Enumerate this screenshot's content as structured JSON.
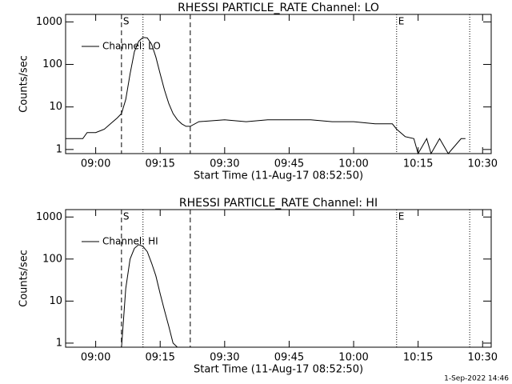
{
  "chart_data": [
    {
      "type": "line",
      "title": "RHESSI PARTICLE_RATE Channel: LO",
      "x_label": "Start Time (11-Aug-17 08:52:50)",
      "y_label": "Counts/sec",
      "log_y": true,
      "xlim": [
        "08:53",
        "10:32"
      ],
      "ylim": [
        0.8,
        1500
      ],
      "yticks": [
        1,
        10,
        100,
        1000
      ],
      "xticks": [
        "09:00",
        "09:15",
        "09:30",
        "09:45",
        "10:00",
        "10:15",
        "10:30"
      ],
      "x": [
        "08:53",
        "08:57",
        "08:58",
        "09:00",
        "09:02",
        "09:04",
        "09:05",
        "09:06",
        "09:07",
        "09:08",
        "09:09",
        "09:10",
        "09:11",
        "09:12",
        "09:13",
        "09:14",
        "09:15",
        "09:16",
        "09:17",
        "09:18",
        "09:19",
        "09:20",
        "09:21",
        "09:22",
        "09:24",
        "09:30",
        "09:35",
        "09:40",
        "09:45",
        "09:50",
        "09:55",
        "10:00",
        "10:05",
        "10:09",
        "10:10",
        "10:12",
        "10:14",
        "10:15",
        "10:17",
        "10:18",
        "10:20",
        "10:22",
        "10:25",
        "10:26"
      ],
      "series": [
        {
          "name": "Channel: LO",
          "color": "#000000",
          "values": [
            1.8,
            1.8,
            2.5,
            2.5,
            3,
            4.5,
            5.5,
            7,
            15,
            60,
            200,
            350,
            430,
            420,
            300,
            150,
            60,
            25,
            12,
            7,
            5,
            4,
            3.5,
            3.5,
            4.5,
            5,
            4.5,
            5,
            5,
            5,
            4.5,
            4.5,
            4,
            4,
            3,
            2,
            1.8,
            0.8,
            1.8,
            0.8,
            1.8,
            0.8,
            1.8,
            1.8
          ]
        }
      ],
      "vlines": [
        {
          "x": "09:06",
          "style": "dashed",
          "label": "S"
        },
        {
          "x": "09:11",
          "style": "dotted"
        },
        {
          "x": "09:22",
          "style": "dashed"
        },
        {
          "x": "10:10",
          "style": "dotted",
          "label": "E"
        },
        {
          "x": "10:27",
          "style": "dotted"
        }
      ]
    },
    {
      "type": "line",
      "title": "RHESSI PARTICLE_RATE Channel: HI",
      "x_label": "Start Time (11-Aug-17 08:52:50)",
      "y_label": "Counts/sec",
      "log_y": true,
      "xlim": [
        "08:53",
        "10:32"
      ],
      "ylim": [
        0.8,
        1500
      ],
      "yticks": [
        1,
        10,
        100,
        1000
      ],
      "xticks": [
        "09:00",
        "09:15",
        "09:30",
        "09:45",
        "10:00",
        "10:15",
        "10:30"
      ],
      "x": [
        "09:06",
        "09:07",
        "09:08",
        "09:09",
        "09:10",
        "09:11",
        "09:12",
        "09:13",
        "09:14",
        "09:15",
        "09:16",
        "09:17",
        "09:18",
        "09:19"
      ],
      "series": [
        {
          "name": "Channel: HI",
          "color": "#000000",
          "values": [
            0.8,
            20,
            100,
            180,
            220,
            200,
            150,
            80,
            40,
            15,
            6,
            2.5,
            1,
            0.8
          ]
        }
      ],
      "vlines": [
        {
          "x": "09:06",
          "style": "dashed",
          "label": "S"
        },
        {
          "x": "09:11",
          "style": "dotted"
        },
        {
          "x": "09:22",
          "style": "dashed"
        },
        {
          "x": "10:10",
          "style": "dotted",
          "label": "E"
        },
        {
          "x": "10:27",
          "style": "dotted"
        }
      ]
    }
  ],
  "footer": "1-Sep-2022 14:46"
}
